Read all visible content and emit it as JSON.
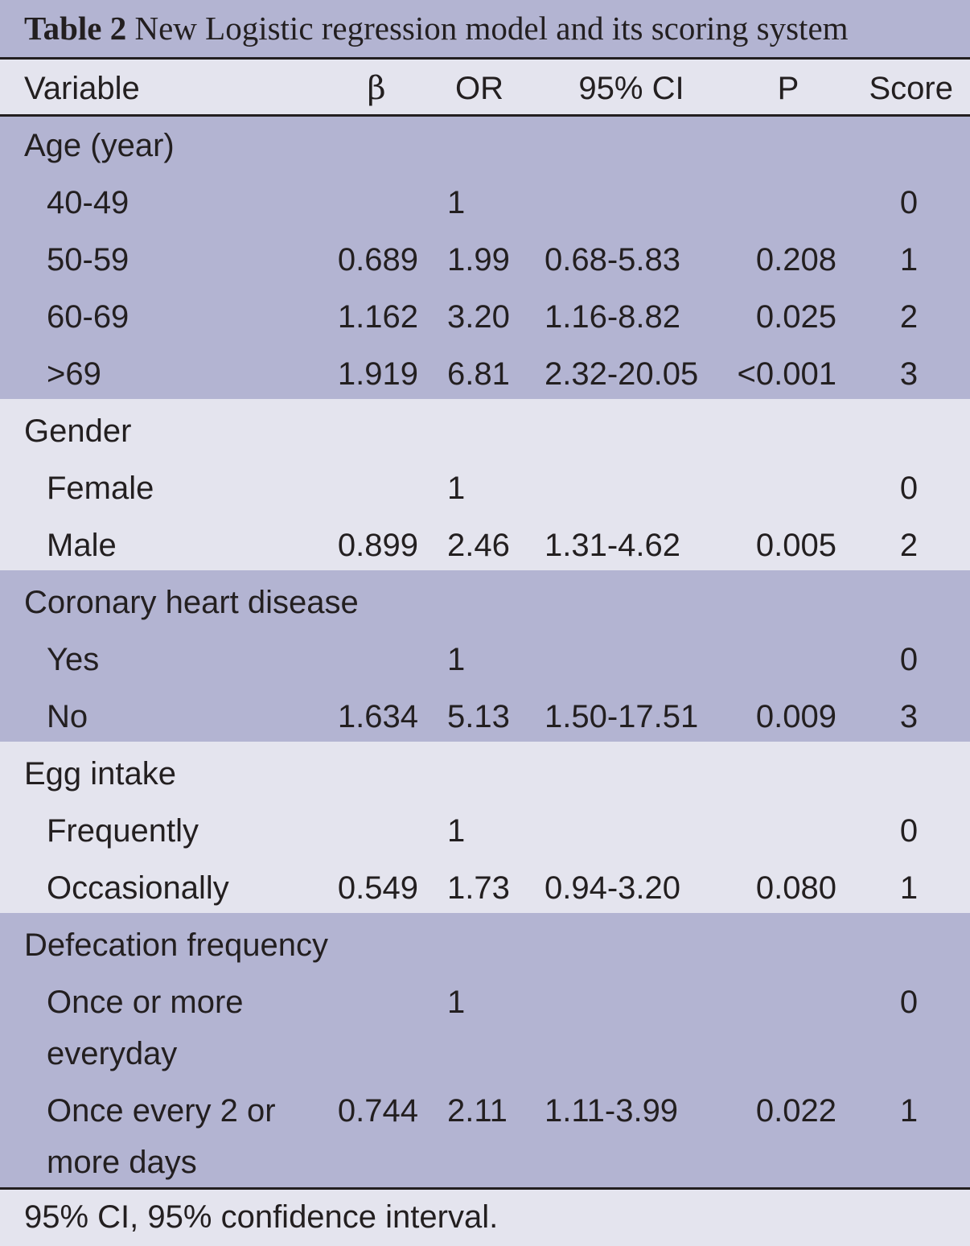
{
  "table": {
    "label": "Table 2",
    "title": "New Logistic regression model and its scoring system",
    "headers": {
      "variable": "Variable",
      "beta": "β",
      "or": "OR",
      "ci": "95% CI",
      "p": "P",
      "score": "Score"
    },
    "groups": [
      {
        "label": "Age (year)",
        "rows": [
          {
            "name": "40-49",
            "beta": "",
            "or": "1",
            "ci": "",
            "p": "",
            "score": "0"
          },
          {
            "name": "50-59",
            "beta": "0.689",
            "or": "1.99",
            "ci": "0.68-5.83",
            "p": "0.208",
            "score": "1"
          },
          {
            "name": "60-69",
            "beta": "1.162",
            "or": "3.20",
            "ci": "1.16-8.82",
            "p": "0.025",
            "score": "2"
          },
          {
            "name": ">69",
            "beta": "1.919",
            "or": "6.81",
            "ci": "2.32-20.05",
            "p": "<0.001",
            "score": "3"
          }
        ]
      },
      {
        "label": "Gender",
        "rows": [
          {
            "name": "Female",
            "beta": "",
            "or": "1",
            "ci": "",
            "p": "",
            "score": "0"
          },
          {
            "name": "Male",
            "beta": "0.899",
            "or": "2.46",
            "ci": "1.31-4.62",
            "p": "0.005",
            "score": "2"
          }
        ]
      },
      {
        "label": "Coronary heart disease",
        "rows": [
          {
            "name": "Yes",
            "beta": "",
            "or": "1",
            "ci": "",
            "p": "",
            "score": "0"
          },
          {
            "name": "No",
            "beta": "1.634",
            "or": "5.13",
            "ci": "1.50-17.51",
            "p": "0.009",
            "score": "3"
          }
        ]
      },
      {
        "label": "Egg intake",
        "rows": [
          {
            "name": "Frequently",
            "beta": "",
            "or": "1",
            "ci": "",
            "p": "",
            "score": "0"
          },
          {
            "name": "Occasionally",
            "beta": "0.549",
            "or": "1.73",
            "ci": "0.94-3.20",
            "p": "0.080",
            "score": "1"
          }
        ]
      },
      {
        "label": "Defecation frequency",
        "rows": [
          {
            "name": "Once or more",
            "name2": "everyday",
            "beta": "",
            "or": "1",
            "ci": "",
            "p": "",
            "score": "0"
          },
          {
            "name": "Once every 2 or",
            "name2": "more days",
            "beta": "0.744",
            "or": "2.11",
            "ci": "1.11-3.99",
            "p": "0.022",
            "score": "1"
          }
        ]
      }
    ],
    "footnote": "95% CI, 95% confidence interval.",
    "colors": {
      "dark_band": "#b3b4d2",
      "light_band": "#e4e4ee",
      "text": "#231f20"
    }
  }
}
